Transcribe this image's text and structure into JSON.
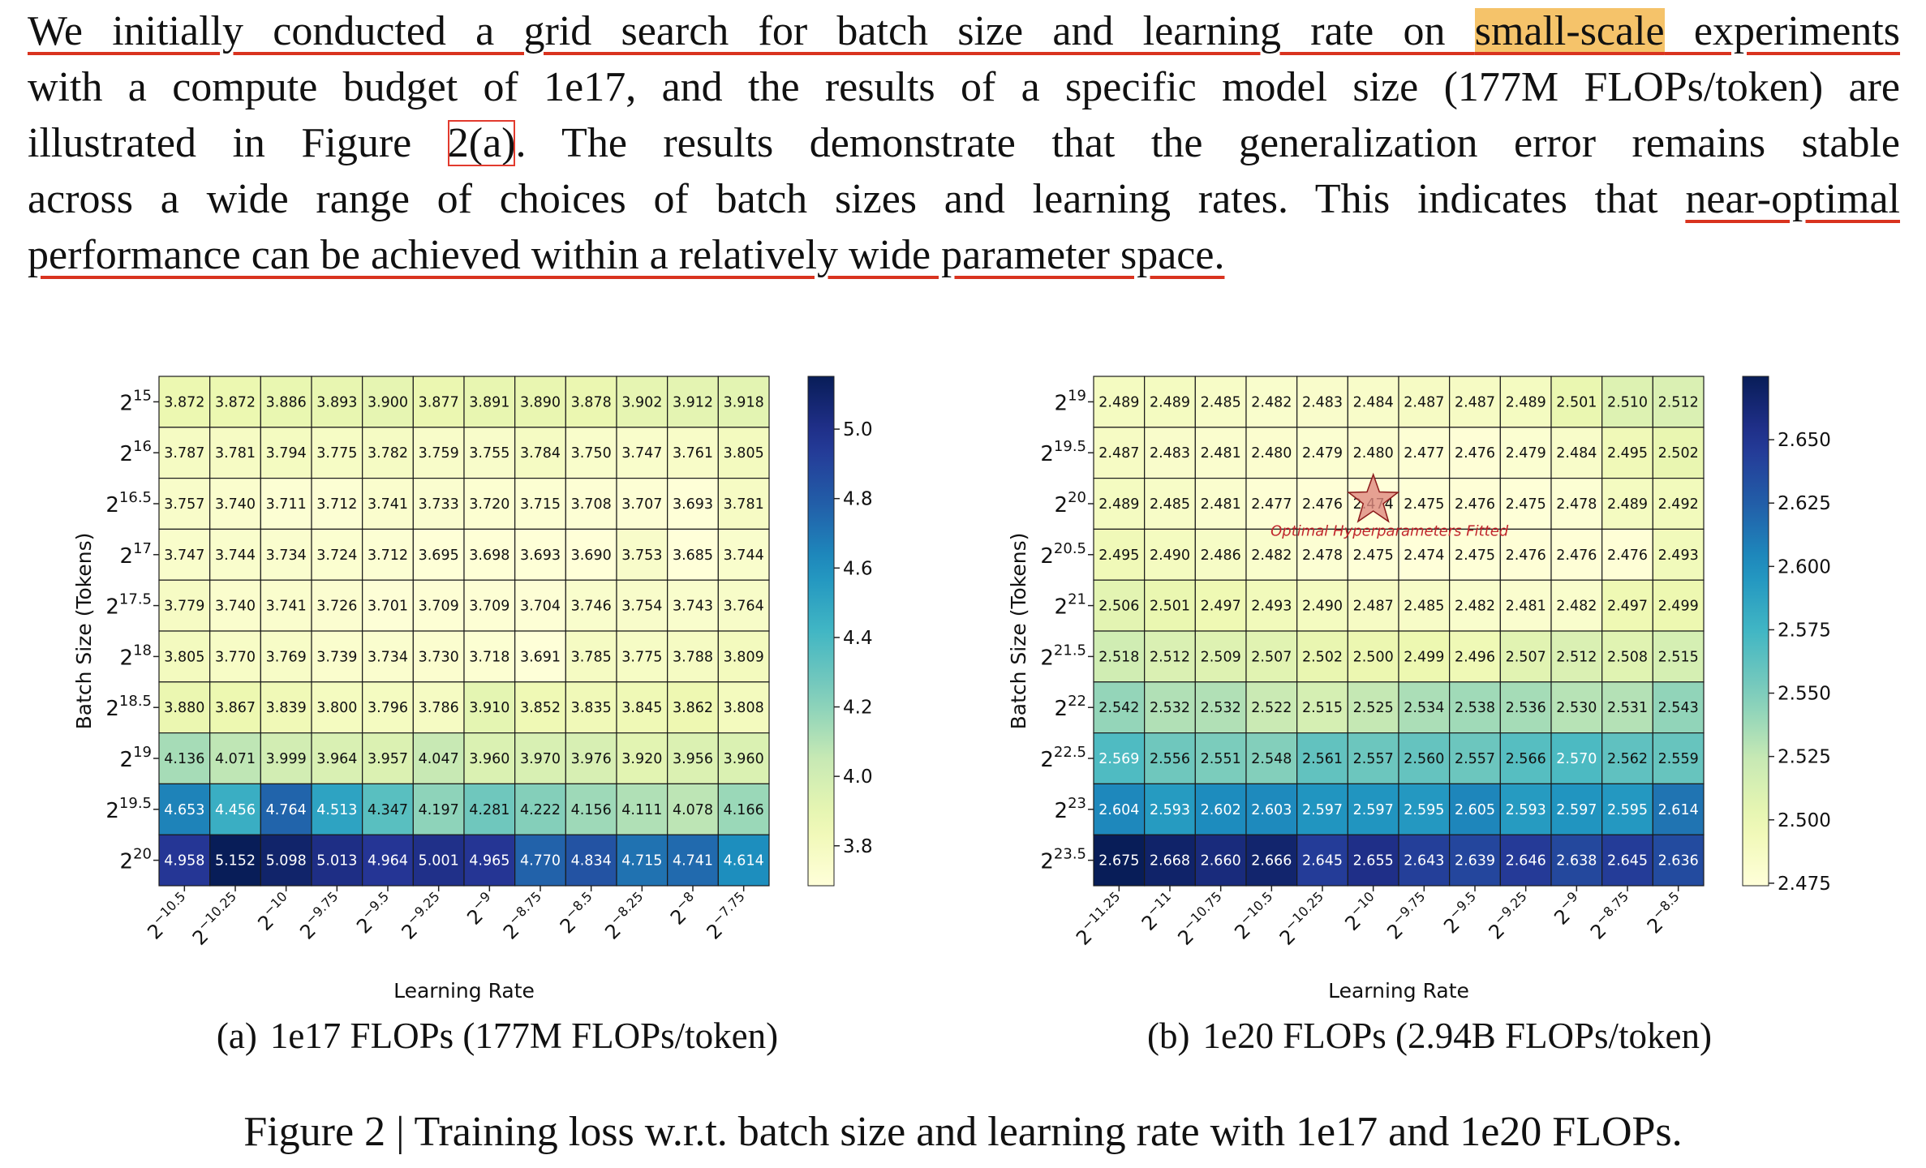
{
  "paragraph": {
    "lines": [
      [
        "We initially conducted a grid search for batch size and learning rate on ",
        "small-scale",
        " experiments"
      ],
      [
        "with a compute budget of 1e17, and the results of a specific model size (177M FLOPs/token) are"
      ],
      [
        "illustrated in Figure ",
        "2(a)",
        ". The results demonstrate that the generalization error remains stable"
      ],
      [
        "across a wide range of choices of batch sizes and learning rates. This indicates that ",
        "near-optimal"
      ],
      [
        "performance can be achieved within a relatively wide parameter space."
      ]
    ]
  },
  "figure": {
    "caption": "Figure 2 | Training loss w.r.t. batch size and learning rate with 1e17 and 1e20 FLOPs."
  },
  "chart_data": [
    {
      "type": "heatmap",
      "label": "(a)",
      "caption": "1e17 FLOPs (177M FLOPs/token)",
      "x_label": "Learning Rate",
      "y_label": "Batch Size (Tokens)",
      "colormap": "YlGnBu",
      "x_categories": [
        [
          "2",
          "−10.5"
        ],
        [
          "2",
          "−10.25"
        ],
        [
          "2",
          "−10"
        ],
        [
          "2",
          "−9.75"
        ],
        [
          "2",
          "−9.5"
        ],
        [
          "2",
          "−9.25"
        ],
        [
          "2",
          "−9"
        ],
        [
          "2",
          "−8.75"
        ],
        [
          "2",
          "−8.5"
        ],
        [
          "2",
          "−8.25"
        ],
        [
          "2",
          "−8"
        ],
        [
          "2",
          "−7.75"
        ]
      ],
      "y_categories": [
        [
          "2",
          "15"
        ],
        [
          "2",
          "16"
        ],
        [
          "2",
          "16.5"
        ],
        [
          "2",
          "17"
        ],
        [
          "2",
          "17.5"
        ],
        [
          "2",
          "18"
        ],
        [
          "2",
          "18.5"
        ],
        [
          "2",
          "19"
        ],
        [
          "2",
          "19.5"
        ],
        [
          "2",
          "20"
        ]
      ],
      "values": [
        [
          3.872,
          3.872,
          3.886,
          3.893,
          3.9,
          3.877,
          3.891,
          3.89,
          3.878,
          3.902,
          3.912,
          3.918
        ],
        [
          3.787,
          3.781,
          3.794,
          3.775,
          3.782,
          3.759,
          3.755,
          3.784,
          3.75,
          3.747,
          3.761,
          3.805
        ],
        [
          3.757,
          3.74,
          3.711,
          3.712,
          3.741,
          3.733,
          3.72,
          3.715,
          3.708,
          3.707,
          3.693,
          3.781
        ],
        [
          3.747,
          3.744,
          3.734,
          3.724,
          3.712,
          3.695,
          3.698,
          3.693,
          3.69,
          3.753,
          3.685,
          3.744
        ],
        [
          3.779,
          3.74,
          3.741,
          3.726,
          3.701,
          3.709,
          3.709,
          3.704,
          3.746,
          3.754,
          3.743,
          3.764
        ],
        [
          3.805,
          3.77,
          3.769,
          3.739,
          3.734,
          3.73,
          3.718,
          3.691,
          3.785,
          3.775,
          3.788,
          3.809
        ],
        [
          3.88,
          3.867,
          3.839,
          3.8,
          3.796,
          3.786,
          3.91,
          3.852,
          3.835,
          3.845,
          3.862,
          3.808
        ],
        [
          4.136,
          4.071,
          3.999,
          3.964,
          3.957,
          4.047,
          3.96,
          3.97,
          3.976,
          3.92,
          3.956,
          3.96
        ],
        [
          4.653,
          4.456,
          4.764,
          4.513,
          4.347,
          4.197,
          4.281,
          4.222,
          4.156,
          4.111,
          4.078,
          4.166
        ],
        [
          4.958,
          5.152,
          5.098,
          5.013,
          4.964,
          5.001,
          4.965,
          4.77,
          4.834,
          4.715,
          4.741,
          4.614
        ]
      ],
      "value_labels": [
        [
          "3.872",
          "3.872",
          "3.886",
          "3.893",
          "3.900",
          "3.877",
          "3.891",
          "3.890",
          "3.878",
          "3.902",
          "3.912",
          "3.918"
        ],
        [
          "3.787",
          "3.781",
          "3.794",
          "3.775",
          "3.782",
          "3.759",
          "3.755",
          "3.784",
          "3.750",
          "3.747",
          "3.761",
          "3.805"
        ],
        [
          "3.757",
          "3.740",
          "3.711",
          "3.712",
          "3.741",
          "3.733",
          "3.720",
          "3.715",
          "3.708",
          "3.707",
          "3.693",
          "3.781"
        ],
        [
          "3.747",
          "3.744",
          "3.734",
          "3.724",
          "3.712",
          "3.695",
          "3.698",
          "3.693",
          "3.690",
          "3.753",
          "3.685",
          "3.744"
        ],
        [
          "3.779",
          "3.740",
          "3.741",
          "3.726",
          "3.701",
          "3.709",
          "3.709",
          "3.704",
          "3.746",
          "3.754",
          "3.743",
          "3.764"
        ],
        [
          "3.805",
          "3.770",
          "3.769",
          "3.739",
          "3.734",
          "3.730",
          "3.718",
          "3.691",
          "3.785",
          "3.775",
          "3.788",
          "3.809"
        ],
        [
          "3.880",
          "3.867",
          "3.839",
          "3.800",
          "3.796",
          "3.786",
          "3.910",
          "3.852",
          "3.835",
          "3.845",
          "3.862",
          "3.808"
        ],
        [
          "4.136",
          "4.071",
          "3.999",
          "3.964",
          "3.957",
          "4.047",
          "3.960",
          "3.970",
          "3.976",
          "3.920",
          "3.956",
          "3.960"
        ],
        [
          "4.653",
          "4.456",
          "4.764",
          "4.513",
          "4.347",
          "4.197",
          "4.281",
          "4.222",
          "4.156",
          "4.111",
          "4.078",
          "4.166"
        ],
        [
          "4.958",
          "5.152",
          "5.098",
          "5.013",
          "4.964",
          "5.001",
          "4.965",
          "4.770",
          "4.834",
          "4.715",
          "4.741",
          "4.614"
        ]
      ],
      "clim": [
        3.685,
        5.152
      ],
      "cticks": [
        3.8,
        {
          "value": 4.0,
          "label": "4.0"
        },
        4.2,
        4.4,
        4.6,
        4.8,
        {
          "value": 5.0,
          "label": "5.0"
        }
      ]
    },
    {
      "type": "heatmap",
      "label": "(b)",
      "caption": "1e20 FLOPs (2.94B FLOPs/token)",
      "x_label": "Learning Rate",
      "y_label": "Batch Size (Tokens)",
      "colormap": "YlGnBu",
      "annotation": "Optimal Hyperparameters Fitted",
      "x_categories": [
        [
          "2",
          "−11.25"
        ],
        [
          "2",
          "−11"
        ],
        [
          "2",
          "−10.75"
        ],
        [
          "2",
          "−10.5"
        ],
        [
          "2",
          "−10.25"
        ],
        [
          "2",
          "−10"
        ],
        [
          "2",
          "−9.75"
        ],
        [
          "2",
          "−9.5"
        ],
        [
          "2",
          "−9.25"
        ],
        [
          "2",
          "−9"
        ],
        [
          "2",
          "−8.75"
        ],
        [
          "2",
          "−8.5"
        ]
      ],
      "y_categories": [
        [
          "2",
          "19"
        ],
        [
          "2",
          "19.5"
        ],
        [
          "2",
          "20"
        ],
        [
          "2",
          "20.5"
        ],
        [
          "2",
          "21"
        ],
        [
          "2",
          "21.5"
        ],
        [
          "2",
          "22"
        ],
        [
          "2",
          "22.5"
        ],
        [
          "2",
          "23"
        ],
        [
          "2",
          "23.5"
        ]
      ],
      "values": [
        [
          2.489,
          2.489,
          2.485,
          2.482,
          2.483,
          2.484,
          2.487,
          2.487,
          2.489,
          2.501,
          2.51,
          2.512
        ],
        [
          2.487,
          2.483,
          2.481,
          2.48,
          2.479,
          2.48,
          2.477,
          2.476,
          2.479,
          2.484,
          2.495,
          2.502
        ],
        [
          2.489,
          2.485,
          2.481,
          2.477,
          2.476,
          2.474,
          2.475,
          2.476,
          2.475,
          2.478,
          2.489,
          2.492
        ],
        [
          2.495,
          2.49,
          2.486,
          2.482,
          2.478,
          2.475,
          2.474,
          2.475,
          2.476,
          2.476,
          2.476,
          2.493
        ],
        [
          2.506,
          2.501,
          2.497,
          2.493,
          2.49,
          2.487,
          2.485,
          2.482,
          2.481,
          2.482,
          2.497,
          2.499
        ],
        [
          2.518,
          2.512,
          2.509,
          2.507,
          2.502,
          2.5,
          2.499,
          2.496,
          2.507,
          2.512,
          2.508,
          2.515
        ],
        [
          2.542,
          2.532,
          2.532,
          2.522,
          2.515,
          2.525,
          2.534,
          2.538,
          2.536,
          2.53,
          2.531,
          2.543
        ],
        [
          2.569,
          2.556,
          2.551,
          2.548,
          2.561,
          2.557,
          2.56,
          2.557,
          2.566,
          2.57,
          2.562,
          2.559
        ],
        [
          2.604,
          2.593,
          2.602,
          2.603,
          2.597,
          2.597,
          2.595,
          2.605,
          2.593,
          2.597,
          2.595,
          2.614
        ],
        [
          2.675,
          2.668,
          2.66,
          2.666,
          2.645,
          2.655,
          2.643,
          2.639,
          2.646,
          2.638,
          2.645,
          2.636
        ]
      ],
      "value_labels": [
        [
          "2.489",
          "2.489",
          "2.485",
          "2.482",
          "2.483",
          "2.484",
          "2.487",
          "2.487",
          "2.489",
          "2.501",
          "2.510",
          "2.512"
        ],
        [
          "2.487",
          "2.483",
          "2.481",
          "2.480",
          "2.479",
          "2.480",
          "2.477",
          "2.476",
          "2.479",
          "2.484",
          "2.495",
          "2.502"
        ],
        [
          "2.489",
          "2.485",
          "2.481",
          "2.477",
          "2.476",
          "2.474",
          "2.475",
          "2.476",
          "2.475",
          "2.478",
          "2.489",
          "2.492"
        ],
        [
          "2.495",
          "2.490",
          "2.486",
          "2.482",
          "2.478",
          "2.475",
          "2.474",
          "2.475",
          "2.476",
          "2.476",
          "2.476",
          "2.493"
        ],
        [
          "2.506",
          "2.501",
          "2.497",
          "2.493",
          "2.490",
          "2.487",
          "2.485",
          "2.482",
          "2.481",
          "2.482",
          "2.497",
          "2.499"
        ],
        [
          "2.518",
          "2.512",
          "2.509",
          "2.507",
          "2.502",
          "2.500",
          "2.499",
          "2.496",
          "2.507",
          "2.512",
          "2.508",
          "2.515"
        ],
        [
          "2.542",
          "2.532",
          "2.532",
          "2.522",
          "2.515",
          "2.525",
          "2.534",
          "2.538",
          "2.536",
          "2.530",
          "2.531",
          "2.543"
        ],
        [
          "2.569",
          "2.556",
          "2.551",
          "2.548",
          "2.561",
          "2.557",
          "2.560",
          "2.557",
          "2.566",
          "2.570",
          "2.562",
          "2.559"
        ],
        [
          "2.604",
          "2.593",
          "2.602",
          "2.603",
          "2.597",
          "2.597",
          "2.595",
          "2.605",
          "2.593",
          "2.597",
          "2.595",
          "2.614"
        ],
        [
          "2.675",
          "2.668",
          "2.660",
          "2.666",
          "2.645",
          "2.655",
          "2.643",
          "2.639",
          "2.646",
          "2.638",
          "2.645",
          "2.636"
        ]
      ],
      "clim": [
        2.474,
        2.675
      ],
      "cticks": [
        2.475,
        {
          "value": 2.5,
          "label": "2.500"
        },
        2.525,
        {
          "value": 2.55,
          "label": "2.550"
        },
        2.575,
        {
          "value": 2.6,
          "label": "2.600"
        },
        2.625,
        {
          "value": 2.65,
          "label": "2.650"
        }
      ]
    }
  ]
}
